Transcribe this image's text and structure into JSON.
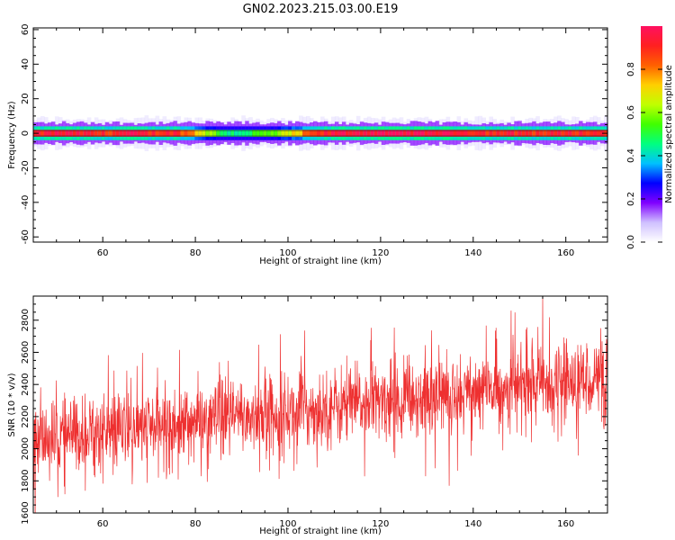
{
  "title": "GN02.2023.215.03.00.E19",
  "colors": {
    "snr_line": "#ee3030",
    "colormap": [
      "#ffffff",
      "#cfc0ff",
      "#8000ff",
      "#0000ff",
      "#00c0ff",
      "#00ff80",
      "#40ff00",
      "#c0ff00",
      "#ffd000",
      "#ff6000",
      "#ff2020",
      "#ff1060"
    ]
  },
  "chart_data": [
    {
      "type": "heatmap",
      "title": "",
      "xlabel": "Height of straight line (km)",
      "ylabel": "Frequency (Hz)",
      "xlim": [
        45,
        169
      ],
      "ylim": [
        -63,
        61
      ],
      "xticks": [
        60,
        80,
        100,
        120,
        140,
        160
      ],
      "yticks": [
        -60,
        -40,
        -20,
        0,
        20,
        40,
        60
      ],
      "band_center_hz": 0,
      "band_halfwidth_hz": [
        2,
        4,
        6,
        8
      ],
      "note_values": "Energy concentrated in a narrow band around 0 Hz across all heights; strongest (red) over most of the range, weaker (green/cyan) near 86-100 km.",
      "colorbar": {
        "label": "Normalized spectral amplitude",
        "range": [
          0,
          1
        ],
        "ticks": [
          "0.0",
          "0.2",
          "0.4",
          "0.6",
          "0.8"
        ]
      },
      "amplitude_profile": {
        "x": [
          45,
          50,
          55,
          60,
          65,
          70,
          75,
          80,
          85,
          88,
          92,
          96,
          100,
          105,
          110,
          115,
          120,
          125,
          130,
          135,
          140,
          145,
          150,
          155,
          160,
          165,
          169
        ],
        "values": [
          0.9,
          0.95,
          0.92,
          0.88,
          0.95,
          0.9,
          0.93,
          0.75,
          0.5,
          0.45,
          0.5,
          0.55,
          0.65,
          0.85,
          0.95,
          0.97,
          0.98,
          0.97,
          0.96,
          0.97,
          0.93,
          0.9,
          0.92,
          0.88,
          0.93,
          0.9,
          0.95
        ]
      }
    },
    {
      "type": "line",
      "title": "",
      "xlabel": "Height of straight line (km)",
      "ylabel": "SNR (10 * v/v)",
      "xlim": [
        45,
        169
      ],
      "ylim": [
        1600,
        2950
      ],
      "xticks": [
        60,
        80,
        100,
        120,
        140,
        160
      ],
      "yticks": [
        1600,
        1800,
        2000,
        2200,
        2400,
        2600,
        2800
      ],
      "series": [
        {
          "trend_x": [
            45,
            169
          ],
          "trend_y": [
            2050,
            2450
          ],
          "noise_sd": 150,
          "n_points": 1800
        }
      ]
    }
  ]
}
